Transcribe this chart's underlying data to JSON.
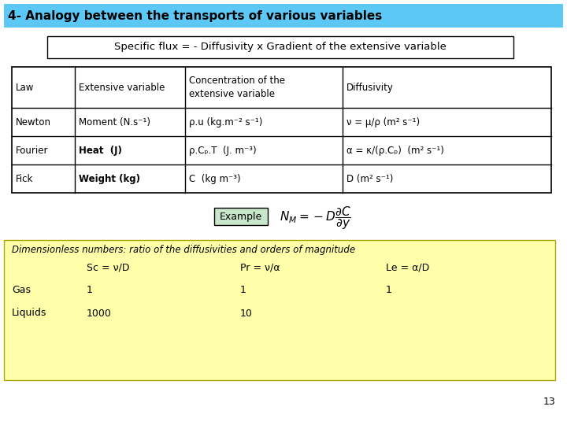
{
  "title": "4- Analogy between the transports of various variables",
  "title_bg": "#5BC8F5",
  "subtitle": "Specific flux = - Diffusivity x Gradient of the extensive variable",
  "table_headers": [
    "Law",
    "Extensive variable",
    "Concentration of the\nextensive variable",
    "Diffusivity"
  ],
  "table_rows": [
    [
      "Newton",
      "Moment (N.s⁻¹)",
      "ρ.u (kg.m⁻² s⁻¹)",
      "ν = μ/ρ (m² s⁻¹)"
    ],
    [
      "Fourier",
      "Heat  (J)",
      "ρ.Cₚ.T  (J. m⁻³)",
      "α = κ/(ρ.Cₚ)  (m² s⁻¹)"
    ],
    [
      "Fick",
      "Weight (kg)",
      "C  (kg m⁻³)",
      "D (m² s⁻¹)"
    ]
  ],
  "example_label": "Example",
  "example_bg": "#c8e6c9",
  "bottom_bg": "#ffffaa",
  "bottom_title": "Dimensionless numbers: ratio of the diffusivities and orders of magnitude",
  "sc_label": "Sc = ν/D",
  "pr_label": "Pr = ν/α",
  "le_label": "Le = α/D",
  "gas_label": "Gas",
  "liquids_label": "Liquids",
  "sc_gas": "1",
  "pr_gas": "1",
  "le_gas": "1",
  "sc_liq": "1000",
  "pr_liq": "10",
  "page_num": "13",
  "bg_color": "#ffffff"
}
